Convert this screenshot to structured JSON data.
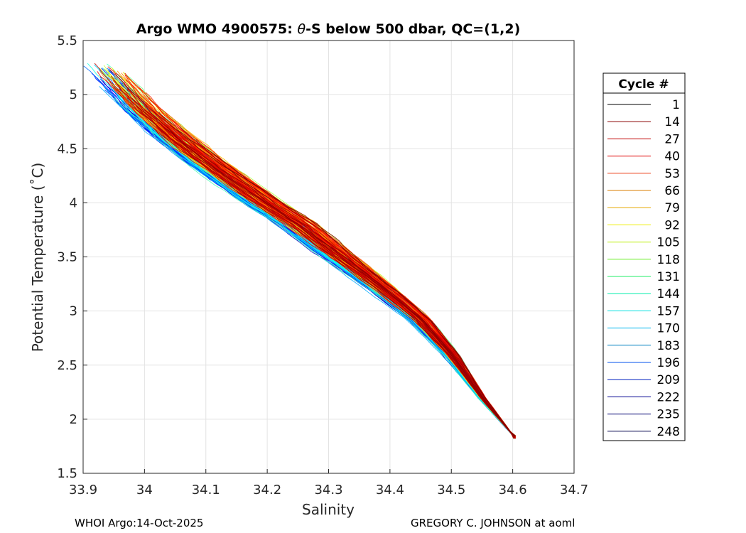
{
  "chart_data": {
    "type": "line",
    "title_prefix": "Argo WMO 4900575: ",
    "title_theta": "θ",
    "title_suffix": "-S below 500 dbar,  QC=(1,2)",
    "xlabel": "Salinity",
    "ylabel": "Potential Temperature (˚C)",
    "xlim": [
      33.9,
      34.7
    ],
    "ylim": [
      1.5,
      5.5
    ],
    "xticks": [
      "33.9",
      "34",
      "34.1",
      "34.2",
      "34.3",
      "34.4",
      "34.5",
      "34.6",
      "34.7"
    ],
    "yticks": [
      "1.5",
      "2",
      "2.5",
      "3",
      "3.5",
      "4",
      "4.5",
      "5",
      "5.5"
    ],
    "grid": true,
    "legend_title": "Cycle #",
    "legend_position": "right",
    "cycle_count": 248,
    "endpoint": {
      "salinity": 34.605,
      "theta": 1.82
    },
    "series_legend": [
      {
        "name": "1",
        "color": "#000000"
      },
      {
        "name": "14",
        "color": "#8b0000"
      },
      {
        "name": "27",
        "color": "#c00000"
      },
      {
        "name": "40",
        "color": "#e00000"
      },
      {
        "name": "53",
        "color": "#ee3a10"
      },
      {
        "name": "66",
        "color": "#d97c00"
      },
      {
        "name": "79",
        "color": "#e5a800"
      },
      {
        "name": "92",
        "color": "#eeee00"
      },
      {
        "name": "105",
        "color": "#b8ee00"
      },
      {
        "name": "118",
        "color": "#66ee22"
      },
      {
        "name": "131",
        "color": "#22ee66"
      },
      {
        "name": "144",
        "color": "#00eeaa"
      },
      {
        "name": "157",
        "color": "#00e0e0"
      },
      {
        "name": "170",
        "color": "#00b4ee"
      },
      {
        "name": "183",
        "color": "#0080c0"
      },
      {
        "name": "196",
        "color": "#0050ee"
      },
      {
        "name": "209",
        "color": "#0020c0"
      },
      {
        "name": "222",
        "color": "#000090"
      },
      {
        "name": "235",
        "color": "#000070"
      },
      {
        "name": "248",
        "color": "#00004a"
      }
    ],
    "mean_profile": {
      "salinity": [
        33.975,
        34.0,
        34.05,
        34.1,
        34.15,
        34.2,
        34.25,
        34.3,
        34.35,
        34.4,
        34.45,
        34.5,
        34.55,
        34.605
      ],
      "theta": [
        5.0,
        4.85,
        4.6,
        4.38,
        4.18,
        3.98,
        3.8,
        3.58,
        3.37,
        3.15,
        2.92,
        2.6,
        2.2,
        1.82
      ]
    }
  },
  "footer": {
    "left": "WHOI Argo:14-Oct-2025",
    "right": "GREGORY C. JOHNSON at aoml"
  }
}
